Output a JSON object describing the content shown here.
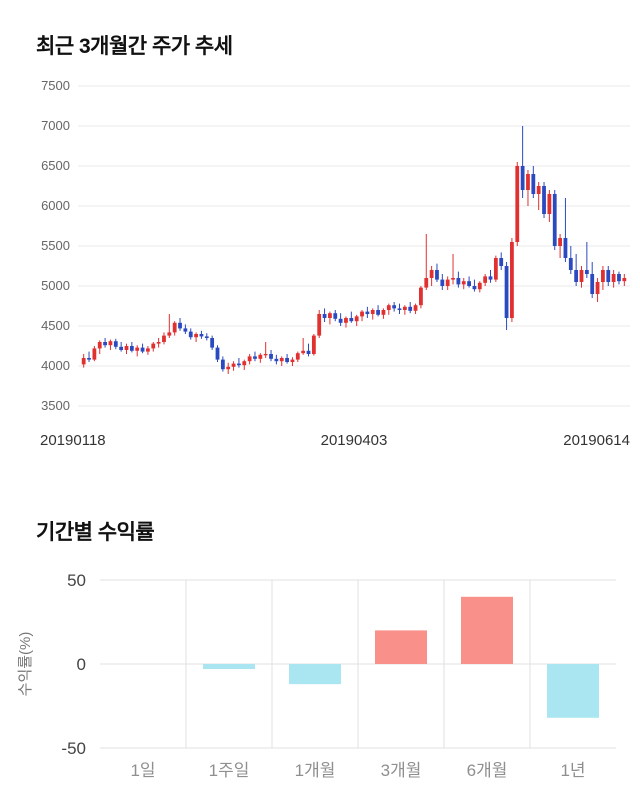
{
  "price_section": {
    "title": "최근 3개월간 주가 추세"
  },
  "returns_section": {
    "title": "기간별 수익률"
  },
  "chart_data": [
    {
      "type": "candlestick",
      "title": "최근 3개월간 주가 추세",
      "ylim": [
        3500,
        7500
      ],
      "y_ticks": [
        7500,
        7000,
        6500,
        6000,
        5500,
        5000,
        4500,
        4000,
        3500
      ],
      "x_ticks": [
        "20190118",
        "20190403",
        "20190614"
      ],
      "up_color": "#e03030",
      "down_color": "#2b4ac0",
      "grid_color": "#e9e9e9",
      "candles": [
        [
          4020,
          4150,
          3980,
          4100
        ],
        [
          4100,
          4180,
          4050,
          4080
        ],
        [
          4080,
          4250,
          4060,
          4220
        ],
        [
          4220,
          4320,
          4150,
          4300
        ],
        [
          4300,
          4350,
          4230,
          4260
        ],
        [
          4260,
          4330,
          4200,
          4310
        ],
        [
          4310,
          4340,
          4210,
          4240
        ],
        [
          4240,
          4300,
          4180,
          4200
        ],
        [
          4200,
          4280,
          4150,
          4250
        ],
        [
          4250,
          4300,
          4170,
          4190
        ],
        [
          4190,
          4260,
          4120,
          4230
        ],
        [
          4230,
          4280,
          4160,
          4180
        ],
        [
          4180,
          4250,
          4140,
          4220
        ],
        [
          4220,
          4300,
          4180,
          4280
        ],
        [
          4280,
          4350,
          4230,
          4300
        ],
        [
          4300,
          4420,
          4270,
          4380
        ],
        [
          4380,
          4650,
          4350,
          4420
        ],
        [
          4420,
          4560,
          4380,
          4540
        ],
        [
          4540,
          4600,
          4440,
          4470
        ],
        [
          4470,
          4520,
          4400,
          4430
        ],
        [
          4430,
          4470,
          4330,
          4360
        ],
        [
          4360,
          4420,
          4300,
          4400
        ],
        [
          4400,
          4440,
          4340,
          4370
        ],
        [
          4370,
          4410,
          4320,
          4350
        ],
        [
          4350,
          4380,
          4200,
          4230
        ],
        [
          4230,
          4260,
          4050,
          4080
        ],
        [
          4080,
          4120,
          3930,
          3960
        ],
        [
          3960,
          4040,
          3900,
          3990
        ],
        [
          3990,
          4060,
          3940,
          4030
        ],
        [
          4030,
          4100,
          3980,
          4010
        ],
        [
          4010,
          4080,
          3950,
          4060
        ],
        [
          4060,
          4150,
          4020,
          4120
        ],
        [
          4120,
          4180,
          4060,
          4090
        ],
        [
          4090,
          4160,
          4040,
          4140
        ],
        [
          4140,
          4300,
          4100,
          4150
        ],
        [
          4150,
          4200,
          4060,
          4090
        ],
        [
          4090,
          4140,
          4020,
          4060
        ],
        [
          4060,
          4120,
          4000,
          4100
        ],
        [
          4100,
          4150,
          4030,
          4050
        ],
        [
          4050,
          4110,
          4000,
          4080
        ],
        [
          4080,
          4180,
          4050,
          4160
        ],
        [
          4160,
          4350,
          4140,
          4190
        ],
        [
          4190,
          4280,
          4120,
          4150
        ],
        [
          4150,
          4400,
          4130,
          4380
        ],
        [
          4380,
          4700,
          4350,
          4650
        ],
        [
          4650,
          4720,
          4550,
          4600
        ],
        [
          4600,
          4680,
          4520,
          4660
        ],
        [
          4660,
          4700,
          4560,
          4590
        ],
        [
          4590,
          4660,
          4500,
          4540
        ],
        [
          4540,
          4620,
          4480,
          4600
        ],
        [
          4600,
          4680,
          4540,
          4560
        ],
        [
          4560,
          4640,
          4500,
          4620
        ],
        [
          4620,
          4700,
          4560,
          4680
        ],
        [
          4680,
          4740,
          4600,
          4650
        ],
        [
          4650,
          4720,
          4580,
          4700
        ],
        [
          4700,
          4760,
          4620,
          4640
        ],
        [
          4640,
          4720,
          4590,
          4700
        ],
        [
          4700,
          4780,
          4640,
          4760
        ],
        [
          4760,
          4800,
          4680,
          4720
        ],
        [
          4720,
          4780,
          4650,
          4700
        ],
        [
          4700,
          4760,
          4640,
          4740
        ],
        [
          4740,
          4800,
          4660,
          4690
        ],
        [
          4690,
          4780,
          4650,
          4760
        ],
        [
          4760,
          5000,
          4720,
          4980
        ],
        [
          4980,
          5650,
          4950,
          5100
        ],
        [
          5100,
          5250,
          5000,
          5200
        ],
        [
          5200,
          5280,
          5050,
          5080
        ],
        [
          5080,
          5150,
          4950,
          5000
        ],
        [
          5000,
          5120,
          4950,
          5080
        ],
        [
          5080,
          5400,
          5020,
          5100
        ],
        [
          5100,
          5180,
          4980,
          5020
        ],
        [
          5020,
          5100,
          4960,
          5060
        ],
        [
          5060,
          5120,
          4980,
          5000
        ],
        [
          5000,
          5080,
          4930,
          4960
        ],
        [
          4960,
          5060,
          4920,
          5040
        ],
        [
          5040,
          5150,
          5000,
          5120
        ],
        [
          5120,
          5200,
          5040,
          5080
        ],
        [
          5080,
          5380,
          5050,
          5350
        ],
        [
          5350,
          5420,
          5200,
          5250
        ],
        [
          5250,
          5300,
          4450,
          4600
        ],
        [
          4600,
          5600,
          4550,
          5550
        ],
        [
          5550,
          6550,
          5500,
          6500
        ],
        [
          6500,
          7000,
          6100,
          6200
        ],
        [
          6200,
          6450,
          6000,
          6400
        ],
        [
          6400,
          6500,
          6100,
          6150
        ],
        [
          6150,
          6300,
          5950,
          6250
        ],
        [
          6250,
          6300,
          5850,
          5900
        ],
        [
          5900,
          6200,
          5800,
          6150
        ],
        [
          6150,
          6200,
          5450,
          5500
        ],
        [
          5500,
          5650,
          5350,
          5600
        ],
        [
          5600,
          6100,
          5300,
          5350
        ],
        [
          5350,
          5500,
          5150,
          5200
        ],
        [
          5200,
          5400,
          5000,
          5050
        ],
        [
          5050,
          5250,
          4980,
          5200
        ],
        [
          5200,
          5550,
          5100,
          5150
        ],
        [
          5150,
          5300,
          4850,
          4900
        ],
        [
          4900,
          5100,
          4800,
          5050
        ],
        [
          5050,
          5250,
          4950,
          5200
        ],
        [
          5200,
          5250,
          5000,
          5050
        ],
        [
          5050,
          5200,
          4980,
          5150
        ],
        [
          5150,
          5180,
          5020,
          5060
        ],
        [
          5060,
          5150,
          5000,
          5100
        ]
      ]
    },
    {
      "type": "bar",
      "categories": [
        "1일",
        "1주일",
        "1개월",
        "3개월",
        "6개월",
        "1년"
      ],
      "values": [
        0,
        -3,
        -12,
        20,
        40,
        -32
      ],
      "ylabel": "수익률(%)",
      "ylim": [
        -50,
        50
      ],
      "y_ticks": [
        50,
        0,
        -50
      ],
      "positive_color": "#f9908a",
      "negative_color": "#aae6f2",
      "grid_color": "#e0e0e0"
    }
  ]
}
